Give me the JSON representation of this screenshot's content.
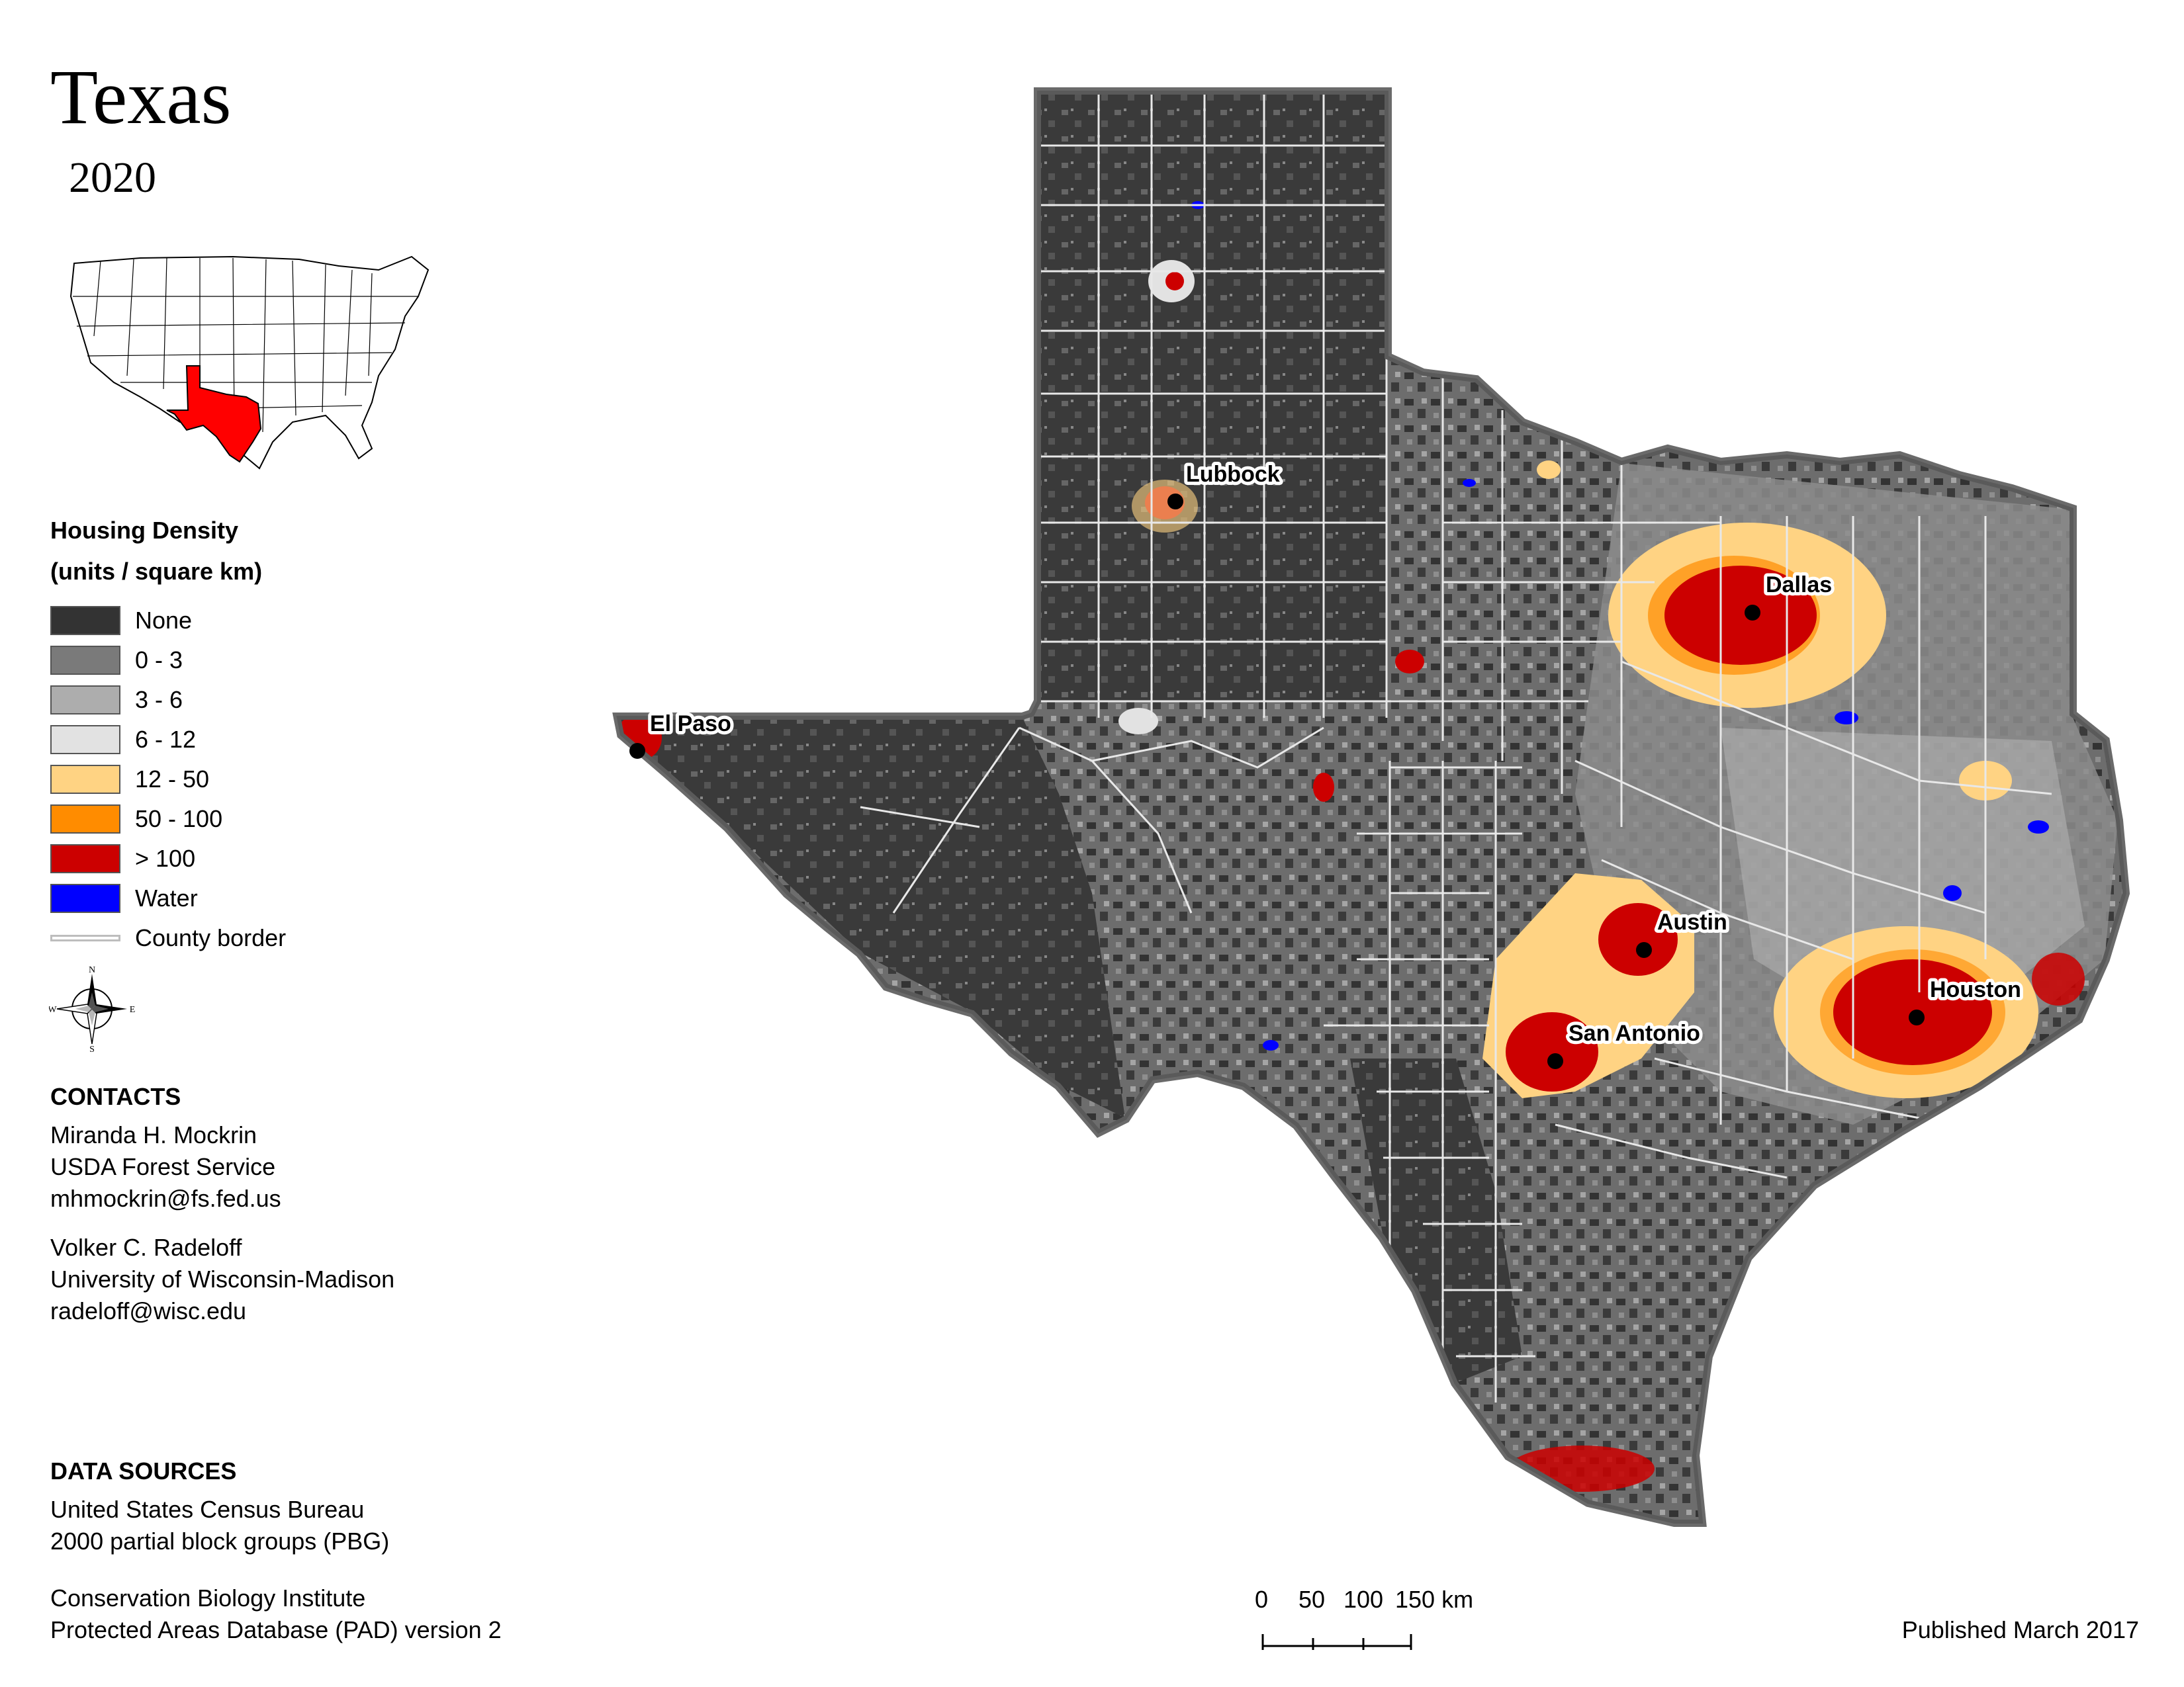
{
  "header": {
    "title": "Texas",
    "year": "2020"
  },
  "inset_map": {
    "highlight_state": "Texas",
    "highlight_color": "#ff0000"
  },
  "legend": {
    "title_line1": "Housing Density",
    "title_line2": "(units / square km)",
    "items": [
      {
        "label": "None",
        "color": "#333333"
      },
      {
        "label": "0 - 3",
        "color": "#7a7a7a"
      },
      {
        "label": "3 - 6",
        "color": "#adadad"
      },
      {
        "label": "6 - 12",
        "color": "#e2e2e2"
      },
      {
        "label": "12 - 50",
        "color": "#ffd383"
      },
      {
        "label": "50 - 100",
        "color": "#ff8c00"
      },
      {
        "label": "> 100",
        "color": "#cc0000"
      },
      {
        "label": "Water",
        "color": "#0000ff"
      }
    ],
    "border_label": "County border"
  },
  "compass": {
    "n": "N",
    "s": "S",
    "e": "E",
    "w": "W",
    "icon": "compass-rose-icon"
  },
  "contacts": {
    "heading": "CONTACTS",
    "people": [
      {
        "name": "Miranda H. Mockrin",
        "org": "USDA Forest Service",
        "email": "mhmockrin@fs.fed.us"
      },
      {
        "name": "Volker C. Radeloff",
        "org": "University of Wisconsin-Madison",
        "email": "radeloff@wisc.edu"
      }
    ]
  },
  "data_sources": {
    "heading": "DATA SOURCES",
    "lines": [
      "United States Census Bureau",
      "2000 partial block groups (PBG)",
      "Conservation Biology Institute",
      "Protected Areas Database (PAD) version 2"
    ]
  },
  "cities": [
    "Lubbock",
    "El Paso",
    "Dallas",
    "Austin",
    "San Antonio",
    "Houston"
  ],
  "scale_bar": {
    "ticks": [
      "0",
      "50",
      "100",
      "150 km"
    ]
  },
  "footer": {
    "published": "Published March 2017"
  }
}
